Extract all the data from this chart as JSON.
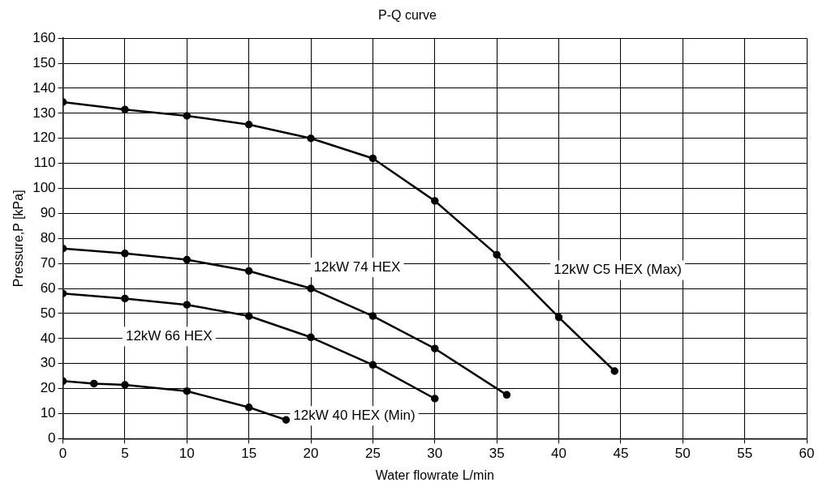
{
  "chart_data": {
    "type": "line",
    "title": "P-Q curve",
    "xlabel": "Water flowrate L/min",
    "ylabel": "Pressure,P [kPa]",
    "xlim": [
      0,
      60
    ],
    "xticks": [
      0,
      5,
      10,
      15,
      20,
      25,
      30,
      35,
      40,
      45,
      50,
      55,
      60
    ],
    "ylim": [
      0,
      160
    ],
    "yticks": [
      0,
      10,
      20,
      30,
      40,
      50,
      60,
      70,
      80,
      90,
      100,
      110,
      120,
      130,
      140,
      150,
      160
    ],
    "grid": true,
    "marker": "circle",
    "line_style": "solid",
    "series": [
      {
        "name": "12kW C5 HEX (Max)",
        "color": "#000000",
        "x": [
          0,
          5,
          10,
          15,
          20,
          25,
          30,
          35,
          40,
          44.5
        ],
        "values": [
          134.5,
          131.5,
          129,
          125.5,
          120,
          112,
          95,
          73.5,
          48.5,
          27
        ]
      },
      {
        "name": "12kW 74 HEX",
        "color": "#000000",
        "x": [
          0,
          5,
          10,
          15,
          20,
          25,
          30,
          35.8
        ],
        "values": [
          76,
          74,
          71.5,
          67,
          60,
          49,
          36,
          17.5
        ]
      },
      {
        "name": "12kW 66 HEX",
        "color": "#000000",
        "x": [
          0,
          5,
          10,
          15,
          20,
          25,
          30
        ],
        "values": [
          58,
          56,
          53.5,
          49,
          40.5,
          29.5,
          16
        ]
      },
      {
        "name": "12kW 40 HEX (Min)",
        "color": "#000000",
        "x": [
          0,
          2.5,
          5,
          10,
          15,
          18
        ],
        "values": [
          23,
          22,
          21.5,
          19,
          12.5,
          7.5
        ]
      }
    ]
  }
}
